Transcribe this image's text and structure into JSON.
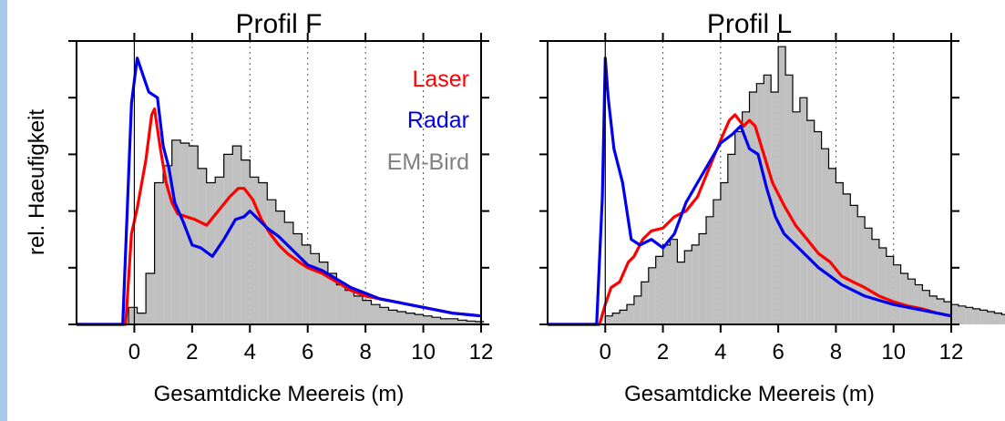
{
  "colors": {
    "laser": "#ff0000",
    "radar": "#0000ee",
    "emb_fill": "#c0c0c0",
    "emb_line": "#000000",
    "emb_legend": "#808080",
    "left_strip": "#a9c9ec"
  },
  "shared": {
    "ylabel": "rel. Haeufigkeit"
  },
  "legend": {
    "laser": "Laser",
    "radar": "Radar",
    "emb": "EM-Bird"
  },
  "chart_data": [
    {
      "type": "line",
      "title": "Profil F",
      "xlabel": "Gesamtdicke Meereis (m)",
      "ylabel": "rel. Haeufigkeit",
      "xlim": [
        -2,
        12
      ],
      "ylim": [
        0,
        1.0
      ],
      "xticks": [
        0,
        2,
        4,
        6,
        8,
        10,
        12
      ],
      "grid_x": [
        2,
        4,
        6,
        8,
        10
      ],
      "legend_position": "top-right",
      "series": [
        {
          "name": "Laser",
          "x": [
            -2,
            -0.3,
            -0.1,
            0.1,
            0.4,
            0.6,
            0.7,
            0.9,
            1.1,
            1.3,
            1.5,
            1.8,
            2.1,
            2.5,
            2.9,
            3.3,
            3.6,
            3.8,
            4.1,
            4.4,
            4.7,
            5.0,
            5.3,
            5.7,
            6.0,
            6.5,
            7.0,
            7.5,
            8.0,
            8.5,
            9.0,
            9.5,
            10.0,
            10.5,
            11.0,
            11.5,
            12.0
          ],
          "y": [
            0.0,
            0.0,
            0.32,
            0.41,
            0.58,
            0.74,
            0.76,
            0.62,
            0.5,
            0.43,
            0.39,
            0.38,
            0.37,
            0.35,
            0.4,
            0.45,
            0.48,
            0.48,
            0.44,
            0.37,
            0.32,
            0.28,
            0.25,
            0.22,
            0.2,
            0.18,
            0.15,
            0.12,
            0.1,
            0.09,
            0.08,
            0.07,
            0.06,
            0.05,
            0.04,
            0.035,
            0.03
          ]
        },
        {
          "name": "Radar",
          "x": [
            -2,
            -0.4,
            -0.1,
            0.1,
            0.3,
            0.5,
            0.8,
            1.0,
            1.2,
            1.4,
            1.7,
            2.0,
            2.3,
            2.7,
            3.1,
            3.5,
            3.8,
            4.0,
            4.3,
            4.6,
            5.0,
            5.4,
            5.7,
            6.0,
            6.5,
            7.0,
            7.5,
            8.0,
            8.5,
            9.0,
            9.5,
            10.0,
            10.5,
            11.0,
            11.5,
            12.0
          ],
          "y": [
            0.0,
            0.0,
            0.78,
            0.94,
            0.88,
            0.82,
            0.8,
            0.63,
            0.55,
            0.43,
            0.36,
            0.28,
            0.27,
            0.24,
            0.3,
            0.37,
            0.38,
            0.4,
            0.37,
            0.34,
            0.31,
            0.27,
            0.24,
            0.21,
            0.19,
            0.16,
            0.13,
            0.11,
            0.09,
            0.08,
            0.07,
            0.06,
            0.05,
            0.04,
            0.035,
            0.03
          ]
        },
        {
          "name": "EM-Bird",
          "type": "histogram",
          "bin_width": 0.3,
          "bin_start": -2.0,
          "values": [
            0.0,
            0.0,
            0.0,
            0.0,
            0.0,
            0.0,
            0.06,
            0.04,
            0.18,
            0.5,
            0.56,
            0.65,
            0.64,
            0.63,
            0.55,
            0.5,
            0.52,
            0.6,
            0.63,
            0.58,
            0.52,
            0.5,
            0.44,
            0.4,
            0.36,
            0.32,
            0.28,
            0.25,
            0.22,
            0.18,
            0.14,
            0.12,
            0.1,
            0.085,
            0.07,
            0.06,
            0.05,
            0.045,
            0.04,
            0.035,
            0.03,
            0.025,
            0.02,
            0.02,
            0.015,
            0.012,
            0.01
          ]
        }
      ]
    },
    {
      "type": "line",
      "title": "Profil L",
      "xlabel": "Gesamtdicke Meereis (m)",
      "ylabel": "",
      "xlim": [
        -2,
        12
      ],
      "ylim": [
        0,
        1.0
      ],
      "xticks": [
        0,
        2,
        4,
        6,
        8,
        10,
        12
      ],
      "grid_x": [
        2,
        4,
        6,
        8,
        10
      ],
      "series": [
        {
          "name": "Laser",
          "x": [
            -2,
            -0.2,
            0.0,
            0.2,
            0.5,
            0.8,
            1.0,
            1.3,
            1.6,
            2.0,
            2.4,
            2.8,
            3.2,
            3.6,
            4.0,
            4.3,
            4.5,
            4.8,
            5.0,
            5.2,
            5.5,
            5.8,
            6.2,
            6.6,
            7.0,
            7.4,
            7.8,
            8.2,
            8.6,
            9.0,
            9.5,
            10.0,
            10.5,
            11.0,
            11.5,
            12.0
          ],
          "y": [
            0.0,
            0.0,
            0.07,
            0.13,
            0.15,
            0.22,
            0.24,
            0.3,
            0.33,
            0.34,
            0.38,
            0.4,
            0.45,
            0.55,
            0.65,
            0.72,
            0.74,
            0.7,
            0.72,
            0.7,
            0.6,
            0.5,
            0.42,
            0.35,
            0.3,
            0.25,
            0.22,
            0.17,
            0.15,
            0.13,
            0.1,
            0.08,
            0.065,
            0.055,
            0.04,
            0.03
          ]
        },
        {
          "name": "Radar",
          "x": [
            -2,
            -0.3,
            -0.1,
            0.0,
            0.1,
            0.3,
            0.6,
            0.9,
            1.2,
            1.6,
            2.0,
            2.4,
            2.8,
            3.2,
            3.6,
            4.0,
            4.4,
            4.7,
            5.0,
            5.3,
            5.6,
            5.9,
            6.2,
            6.6,
            7.0,
            7.4,
            7.8,
            8.2,
            8.6,
            9.0,
            9.5,
            10.0,
            10.5,
            11.0,
            11.5,
            12.0
          ],
          "y": [
            0.0,
            0.0,
            0.45,
            0.94,
            0.8,
            0.62,
            0.5,
            0.3,
            0.28,
            0.3,
            0.27,
            0.32,
            0.43,
            0.5,
            0.57,
            0.64,
            0.67,
            0.7,
            0.62,
            0.6,
            0.48,
            0.38,
            0.32,
            0.28,
            0.24,
            0.2,
            0.17,
            0.14,
            0.12,
            0.1,
            0.085,
            0.07,
            0.06,
            0.05,
            0.04,
            0.03
          ]
        },
        {
          "name": "EM-Bird",
          "type": "histogram",
          "bin_width": 0.25,
          "bin_start": -2.0,
          "values": [
            0.0,
            0.0,
            0.0,
            0.0,
            0.0,
            0.0,
            0.0,
            0.0,
            0.03,
            0.04,
            0.05,
            0.07,
            0.1,
            0.15,
            0.2,
            0.24,
            0.28,
            0.3,
            0.22,
            0.26,
            0.28,
            0.32,
            0.38,
            0.44,
            0.5,
            0.6,
            0.68,
            0.75,
            0.82,
            0.85,
            0.88,
            0.82,
            0.98,
            0.88,
            0.75,
            0.8,
            0.72,
            0.68,
            0.62,
            0.55,
            0.5,
            0.46,
            0.42,
            0.38,
            0.34,
            0.3,
            0.27,
            0.24,
            0.21,
            0.18,
            0.16,
            0.14,
            0.12,
            0.1,
            0.09,
            0.08,
            0.07,
            0.065,
            0.06,
            0.055,
            0.05,
            0.045,
            0.04,
            0.035,
            0.03,
            0.03,
            0.025,
            0.02,
            0.018,
            0.015,
            0.012,
            0.01
          ]
        }
      ]
    }
  ]
}
